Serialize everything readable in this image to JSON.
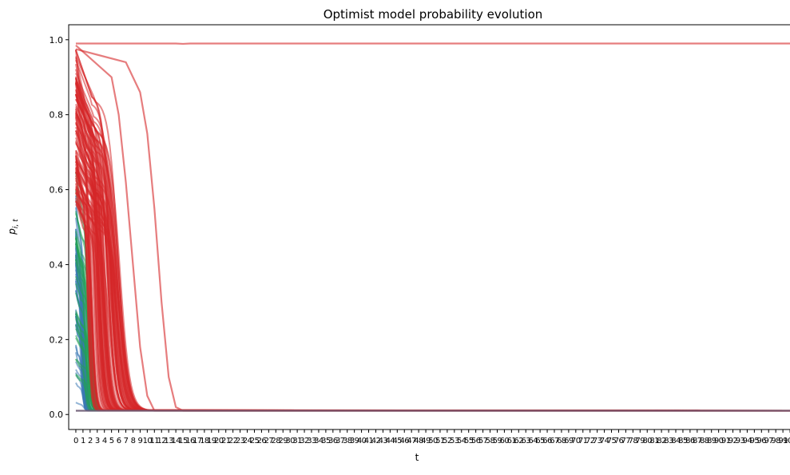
{
  "chart_data": {
    "type": "line",
    "title": "Optimist model probability evolution",
    "xlabel": "t",
    "ylabel": "p_{i,t}",
    "ylabel_display": {
      "base": "p",
      "subscript": "i, t"
    },
    "xlim": [
      -1,
      101
    ],
    "ylim": [
      -0.04,
      1.04
    ],
    "x_ticks": [
      0,
      1,
      2,
      3,
      4,
      5,
      6,
      7,
      8,
      9,
      10,
      11,
      12,
      13,
      14,
      15,
      16,
      17,
      18,
      19,
      20,
      21,
      22,
      23,
      24,
      25,
      26,
      27,
      28,
      29,
      30,
      31,
      32,
      33,
      34,
      35,
      36,
      37,
      38,
      39,
      40,
      41,
      42,
      43,
      44,
      45,
      46,
      47,
      48,
      49,
      50,
      51,
      52,
      53,
      54,
      55,
      56,
      57,
      58,
      59,
      60,
      61,
      62,
      63,
      64,
      65,
      66,
      67,
      68,
      69,
      70,
      71,
      72,
      73,
      74,
      75,
      76,
      77,
      78,
      79,
      80,
      81,
      82,
      83,
      84,
      85,
      86,
      87,
      88,
      89,
      90,
      91,
      92,
      93,
      94,
      95,
      96,
      97,
      98,
      99,
      100,
      101
    ],
    "y_ticks": [
      0.0,
      0.2,
      0.4,
      0.6,
      0.8,
      1.0
    ],
    "y_tick_labels": [
      "0.0",
      "0.2",
      "0.4",
      "0.6",
      "0.8",
      "1.0"
    ],
    "grid": false,
    "colors": {
      "blue": "#3b78b5",
      "green": "#22a056",
      "red": "#d62728",
      "floor": "#6b5b73"
    },
    "floor_value": 0.01,
    "series_groups": [
      {
        "color": "blue",
        "count": 40,
        "start_range": [
          0.02,
          0.6
        ],
        "fall_range": [
          0.3,
          1.2
        ]
      },
      {
        "color": "green",
        "count": 30,
        "start_range": [
          0.1,
          0.65
        ],
        "fall_range": [
          0.8,
          2.4
        ]
      },
      {
        "color": "red",
        "count": 90,
        "start_range": [
          0.55,
          0.985
        ],
        "fall_range": [
          1.5,
          8.0
        ]
      }
    ],
    "highlight_series": [
      {
        "color": "red",
        "values_sparse": [
          [
            0,
            0.975
          ],
          [
            7,
            0.94
          ],
          [
            9,
            0.86
          ],
          [
            10,
            0.75
          ],
          [
            11,
            0.55
          ],
          [
            12,
            0.3
          ],
          [
            13,
            0.1
          ],
          [
            14,
            0.02
          ],
          [
            15,
            0.01
          ],
          [
            101,
            0.01
          ]
        ]
      },
      {
        "color": "red",
        "values_sparse": [
          [
            0,
            0.985
          ],
          [
            5,
            0.9
          ],
          [
            6,
            0.8
          ],
          [
            7,
            0.62
          ],
          [
            8,
            0.4
          ],
          [
            9,
            0.18
          ],
          [
            10,
            0.05
          ],
          [
            11,
            0.01
          ],
          [
            101,
            0.01
          ]
        ]
      },
      {
        "color": "red",
        "values_sparse": [
          [
            0,
            0.99
          ],
          [
            14,
            0.99
          ],
          [
            15,
            0.989
          ],
          [
            16,
            0.99
          ],
          [
            101,
            0.99
          ]
        ]
      }
    ]
  }
}
